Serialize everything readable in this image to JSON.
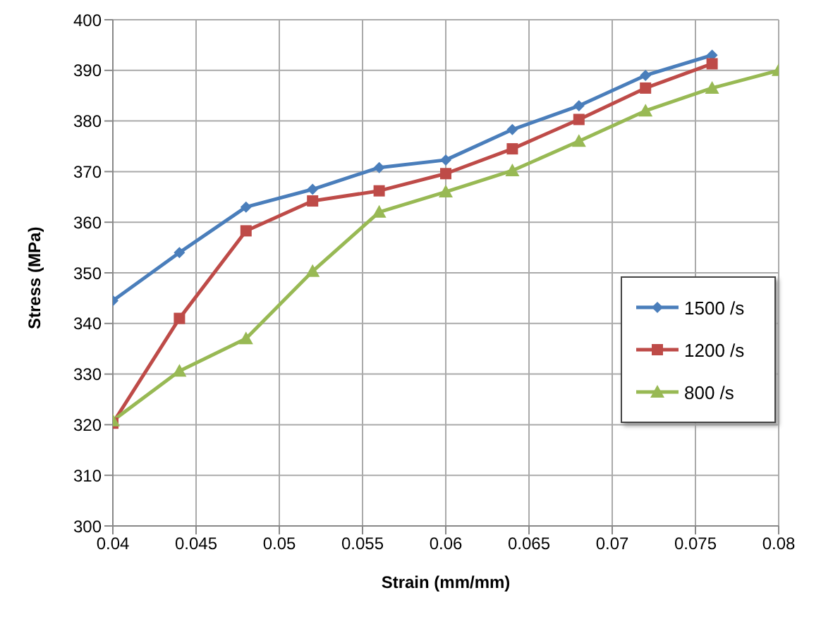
{
  "chart_data": {
    "type": "line",
    "xlabel": "Strain (mm/mm)",
    "ylabel": "Stress (MPa)",
    "x": [
      0.04,
      0.044,
      0.048,
      0.052,
      0.056,
      0.06,
      0.064,
      0.068,
      0.072,
      0.076,
      0.08
    ],
    "series": [
      {
        "name": "1500 /s",
        "color": "#4a7ebb",
        "marker": "diamond",
        "values": [
          344.5,
          354,
          363,
          366.5,
          370.8,
          372.3,
          378.3,
          383,
          389,
          393,
          null
        ]
      },
      {
        "name": "1200 /s",
        "color": "#be4b48",
        "marker": "square",
        "values": [
          320.3,
          341,
          358.3,
          364.2,
          366.2,
          369.6,
          374.5,
          380.3,
          386.5,
          391.3,
          null
        ]
      },
      {
        "name": "800 /s",
        "color": "#98b954",
        "marker": "triangle",
        "values": [
          320.8,
          330.6,
          337,
          350.3,
          362,
          366,
          370.2,
          376,
          382,
          386.5,
          390
        ]
      }
    ],
    "xlim": [
      0.04,
      0.08
    ],
    "xticks": [
      0.04,
      0.045,
      0.05,
      0.055,
      0.06,
      0.065,
      0.07,
      0.075,
      0.08
    ],
    "ylim": [
      300,
      400
    ],
    "yticks": [
      300,
      310,
      320,
      330,
      340,
      350,
      360,
      370,
      380,
      390,
      400
    ],
    "grid": true,
    "legend": "right",
    "line_style": "solid"
  }
}
